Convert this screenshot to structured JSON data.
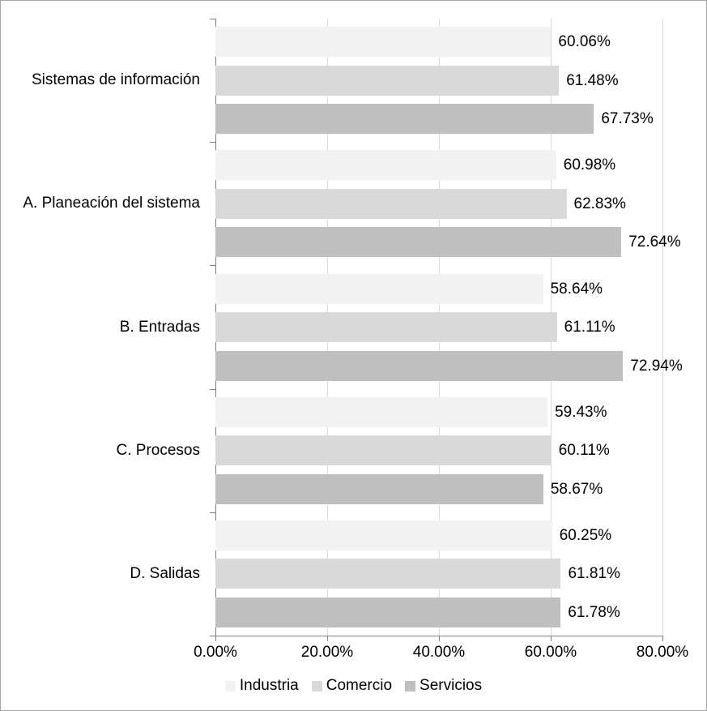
{
  "chart_data": {
    "type": "bar",
    "orientation": "horizontal",
    "title": "",
    "xlabel": "",
    "ylabel": "",
    "categories": [
      "Sistemas de información",
      "A. Planeación del sistema",
      "B. Entradas",
      "C. Procesos",
      "D. Salidas"
    ],
    "series": [
      {
        "name": "Industria",
        "color": "#f2f2f2",
        "values": [
          60.06,
          60.98,
          58.64,
          59.43,
          60.25
        ],
        "labels": [
          "60.06%",
          "60.98%",
          "58.64%",
          "59.43%",
          "60.25%"
        ]
      },
      {
        "name": "Comercio",
        "color": "#d9d9d9",
        "values": [
          61.48,
          62.83,
          61.11,
          60.11,
          61.81
        ],
        "labels": [
          "61.48%",
          "62.83%",
          "61.11%",
          "60.11%",
          "61.81%"
        ]
      },
      {
        "name": "Servicios",
        "color": "#bfbfbf",
        "values": [
          67.73,
          72.64,
          72.94,
          58.67,
          61.78
        ],
        "labels": [
          "67.73%",
          "72.64%",
          "72.94%",
          "58.67%",
          "61.78%"
        ]
      }
    ],
    "xlim": [
      0,
      80
    ],
    "x_ticks": [
      0,
      20,
      40,
      60,
      80
    ],
    "x_tick_labels": [
      "0.00%",
      "20.00%",
      "40.00%",
      "60.00%",
      "80.00%"
    ],
    "grid": true,
    "legend_position": "bottom",
    "colors": {
      "axis": "#808080",
      "gridline": "#d9d9d9",
      "text": "#000000",
      "border": "#a6a6a6",
      "background": "#ffffff"
    }
  }
}
